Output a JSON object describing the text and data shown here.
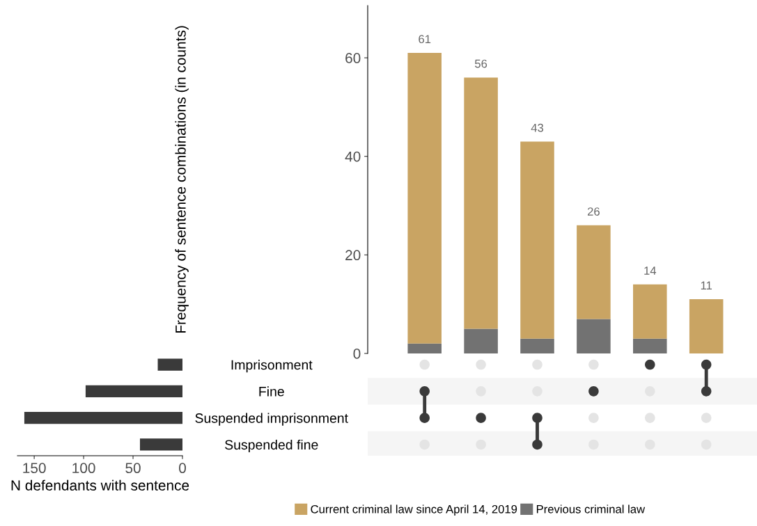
{
  "chart_data": [
    {
      "type": "bar",
      "stacked": true,
      "ylabel": "Frequency of sentence combinations (in counts)",
      "categories": [
        null,
        null,
        null,
        null,
        null,
        null
      ],
      "ylim": [
        0,
        70.6
      ],
      "yticks": [
        0,
        20,
        40,
        60
      ],
      "grid": false,
      "legend": "bottom",
      "tick_labels": "y",
      "series": [
        {
          "name": "Previous criminal law",
          "color": "#727272",
          "values": [
            2,
            5,
            3,
            7,
            3,
            0
          ]
        },
        {
          "name": "Current criminal law since April 14, 2019",
          "color": "#c9a463",
          "values": [
            59,
            51,
            40,
            19,
            11,
            11
          ]
        }
      ],
      "totals": [
        "61",
        "56",
        "43",
        "26",
        "14",
        "11"
      ]
    },
    {
      "type": "bar",
      "orientation": "horizontal",
      "xlabel": "N defendants with sentence",
      "categories": [
        "Imprisonment",
        "Fine",
        "Suspended imprisonment",
        "Suspended fine"
      ],
      "values": [
        25,
        98,
        160,
        43
      ],
      "color": "#3a3a3a",
      "xlim": [
        167,
        0
      ],
      "xticks": [
        150,
        100,
        50,
        0
      ],
      "grid": false
    },
    {
      "type": "other",
      "categories": [
        null,
        null,
        null,
        null,
        null,
        null
      ],
      "cells": [
        [
          false,
          false,
          false,
          false,
          true,
          true
        ],
        [
          true,
          false,
          false,
          true,
          false,
          true
        ],
        [
          true,
          true,
          true,
          false,
          false,
          false
        ],
        [
          false,
          false,
          true,
          false,
          false,
          false
        ]
      ],
      "colors": [
        "#3a3a3a",
        "#e4e4e4"
      ]
    }
  ]
}
